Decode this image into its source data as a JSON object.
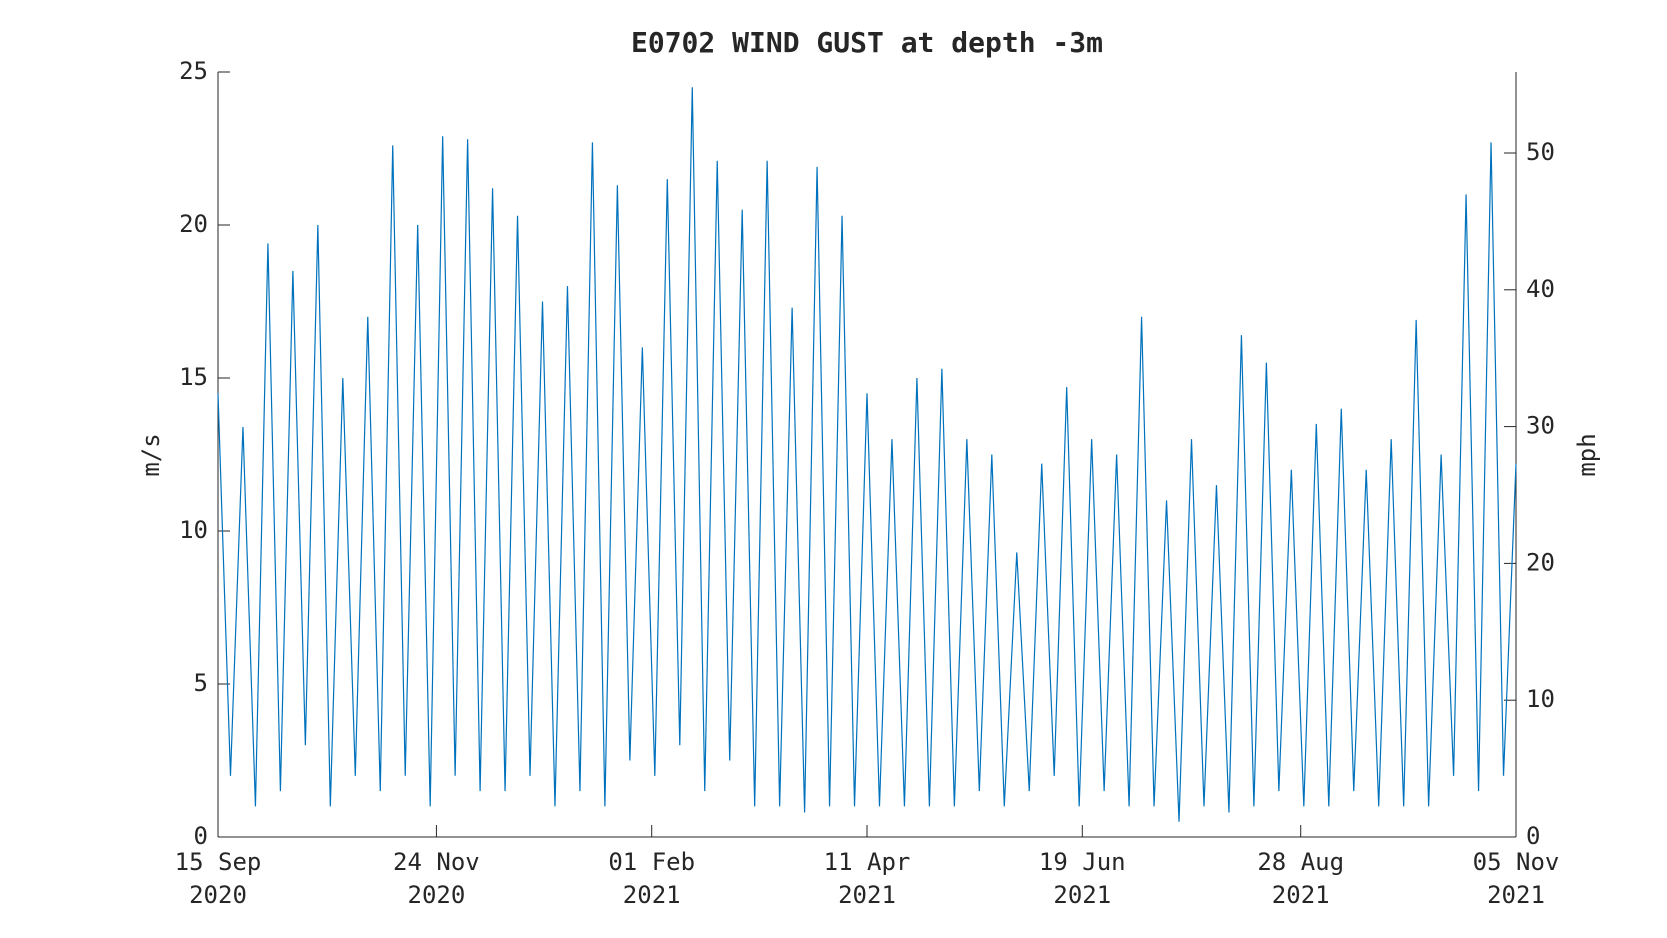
{
  "chart_data": {
    "type": "line",
    "title": "E0702 WIND GUST at depth -3m",
    "ylabel": "m/s",
    "y2label": "mph",
    "x": [
      "2020-09-15",
      "2020-09-19",
      "2020-09-23",
      "2020-09-27",
      "2020-10-01",
      "2020-10-05",
      "2020-10-09",
      "2020-10-13",
      "2020-10-17",
      "2020-10-21",
      "2020-10-25",
      "2020-10-29",
      "2020-11-02",
      "2020-11-06",
      "2020-11-10",
      "2020-11-14",
      "2020-11-18",
      "2020-11-22",
      "2020-11-26",
      "2020-11-30",
      "2020-12-04",
      "2020-12-08",
      "2020-12-12",
      "2020-12-16",
      "2020-12-20",
      "2020-12-24",
      "2020-12-28",
      "2021-01-01",
      "2021-01-05",
      "2021-01-09",
      "2021-01-13",
      "2021-01-17",
      "2021-01-21",
      "2021-01-25",
      "2021-01-29",
      "2021-02-02",
      "2021-02-06",
      "2021-02-10",
      "2021-02-14",
      "2021-02-18",
      "2021-02-22",
      "2021-02-26",
      "2021-03-02",
      "2021-03-06",
      "2021-03-10",
      "2021-03-14",
      "2021-03-18",
      "2021-03-22",
      "2021-03-26",
      "2021-03-30",
      "2021-04-03",
      "2021-04-07",
      "2021-04-11",
      "2021-04-15",
      "2021-04-19",
      "2021-04-23",
      "2021-04-27",
      "2021-05-01",
      "2021-05-05",
      "2021-05-09",
      "2021-05-13",
      "2021-05-17",
      "2021-05-21",
      "2021-05-25",
      "2021-05-29",
      "2021-06-02",
      "2021-06-06",
      "2021-06-10",
      "2021-06-14",
      "2021-06-18",
      "2021-06-22",
      "2021-06-26",
      "2021-06-30",
      "2021-07-04",
      "2021-07-08",
      "2021-07-12",
      "2021-07-16",
      "2021-07-20",
      "2021-07-24",
      "2021-07-28",
      "2021-08-01",
      "2021-08-05",
      "2021-08-09",
      "2021-08-13",
      "2021-08-17",
      "2021-08-21",
      "2021-08-25",
      "2021-08-29",
      "2021-09-02",
      "2021-09-06",
      "2021-09-10",
      "2021-09-14",
      "2021-09-18",
      "2021-09-22",
      "2021-09-26",
      "2021-09-30",
      "2021-10-04",
      "2021-10-08",
      "2021-10-12",
      "2021-10-16",
      "2021-10-20",
      "2021-10-24",
      "2021-10-28",
      "2021-11-01",
      "2021-11-05"
    ],
    "series": [
      {
        "name": "wind gust",
        "color": "#0072bd",
        "values": [
          14.5,
          2,
          13.4,
          1,
          19.4,
          1.5,
          18.5,
          3,
          20,
          1,
          15,
          2,
          17,
          1.5,
          22.6,
          2,
          20,
          1,
          22.9,
          2,
          22.8,
          1.5,
          21.2,
          1.5,
          20.3,
          2,
          17.5,
          1,
          18,
          1.5,
          22.7,
          1,
          21.3,
          2.5,
          16,
          2,
          21.5,
          3,
          24.5,
          1.5,
          22.1,
          2.5,
          20.5,
          1,
          22.1,
          1,
          17.3,
          0.8,
          21.9,
          1,
          20.3,
          1,
          14.5,
          1,
          13,
          1,
          15,
          1,
          15.3,
          1,
          13,
          1.5,
          12.5,
          1,
          9.3,
          1.5,
          12.2,
          2,
          14.7,
          1,
          13,
          1.5,
          12.5,
          1,
          17,
          1,
          11,
          0.5,
          13,
          1,
          11.5,
          0.8,
          16.4,
          1,
          15.5,
          1.5,
          12,
          1,
          13.5,
          1,
          14,
          1.5,
          12,
          1,
          13,
          1,
          16.9,
          1,
          12.5,
          2,
          21,
          1.5,
          22.7,
          2,
          12.2
        ]
      }
    ],
    "xlim": [
      "2020-09-15",
      "2021-11-05"
    ],
    "xticks": [
      {
        "value": "2020-09-15",
        "label": "15 Sep 2020"
      },
      {
        "value": "2020-11-24",
        "label": "24 Nov 2020"
      },
      {
        "value": "2021-02-01",
        "label": "01 Feb 2021"
      },
      {
        "value": "2021-04-11",
        "label": "11 Apr 2021"
      },
      {
        "value": "2021-06-19",
        "label": "19 Jun 2021"
      },
      {
        "value": "2021-08-28",
        "label": "28 Aug 2021"
      },
      {
        "value": "2021-11-05",
        "label": "05 Nov 2021"
      }
    ],
    "ylim": [
      0,
      25
    ],
    "yticks": [
      0,
      5,
      10,
      15,
      20,
      25
    ],
    "y2lim": [
      0,
      55.92
    ],
    "y2ticks": [
      0,
      10,
      20,
      30,
      40,
      50
    ],
    "grid": false
  }
}
